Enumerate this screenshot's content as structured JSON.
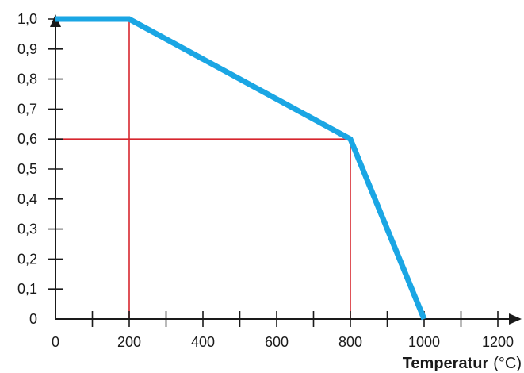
{
  "chart_data": {
    "type": "line",
    "title": "",
    "xlabel": "Temperatur",
    "xlabel_unit": "(°C)",
    "ylabel": "",
    "xlim": [
      0,
      1200
    ],
    "ylim": [
      0,
      1.0
    ],
    "x_ticks": [
      0,
      200,
      400,
      600,
      800,
      1000,
      1200
    ],
    "x_tick_labels": [
      "0",
      "200",
      "400",
      "600",
      "800",
      "1000",
      "1200"
    ],
    "x_minor_ticks": [
      100,
      300,
      500,
      700,
      900,
      1100
    ],
    "y_ticks": [
      0,
      0.1,
      0.2,
      0.3,
      0.4,
      0.5,
      0.6,
      0.7,
      0.8,
      0.9,
      1.0
    ],
    "y_tick_labels": [
      "0",
      "0,1",
      "0,2",
      "0,3",
      "0,4",
      "0,5",
      "0,6",
      "0,7",
      "0,8",
      "0,9",
      "1,0"
    ],
    "grid": false,
    "series": [
      {
        "color": "#1aa6e4",
        "points": [
          {
            "x": 0,
            "y": 1.0
          },
          {
            "x": 200,
            "y": 1.0
          },
          {
            "x": 800,
            "y": 0.6
          },
          {
            "x": 1000,
            "y": 0.0
          }
        ]
      }
    ],
    "reference_lines": [
      {
        "type": "vertical",
        "x": 200,
        "y_from": 0,
        "y_to": 1.0
      },
      {
        "type": "vertical",
        "x": 800,
        "y_from": 0,
        "y_to": 0.6
      },
      {
        "type": "horizontal",
        "y": 0.6,
        "x_from": 0,
        "x_to": 800
      }
    ],
    "colors": {
      "axis": "#1a1a1a",
      "reference": "#d7262e",
      "series": "#1aa6e4"
    }
  }
}
